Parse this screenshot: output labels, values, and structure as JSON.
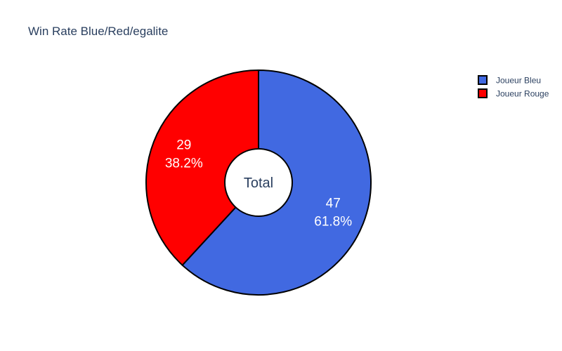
{
  "chart_data": {
    "type": "pie",
    "hole": true,
    "title": "Win Rate Blue/Red/egalite",
    "center_label": "Total",
    "slices": [
      {
        "label": "Joueur Bleu",
        "value": 47,
        "percent": "61.8%",
        "color": "#4169e1"
      },
      {
        "label": "Joueur Rouge",
        "value": 29,
        "percent": "38.2%",
        "color": "#ff0000"
      }
    ],
    "legend_placement": "top-right",
    "slice_border_color": "#000000"
  }
}
